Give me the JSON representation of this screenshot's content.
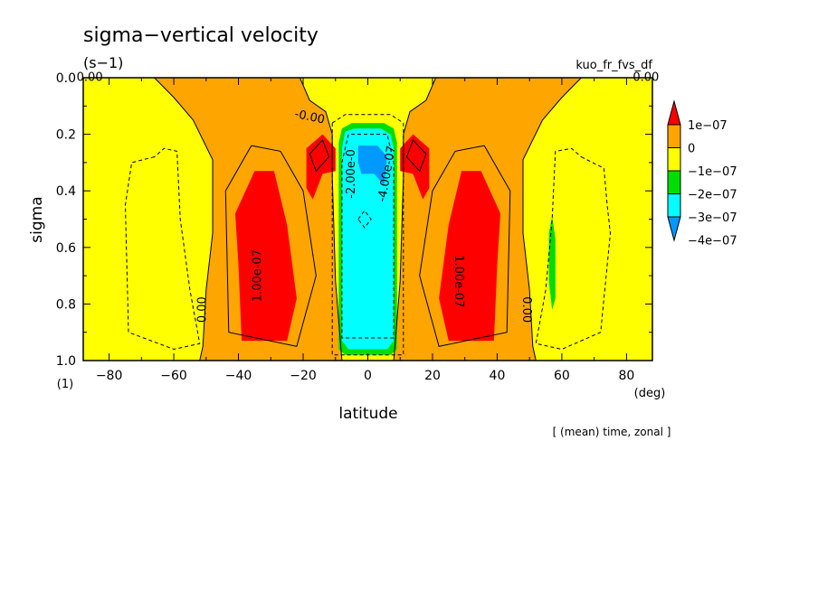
{
  "chart_data": {
    "type": "heatmap",
    "title": "sigma−vertical velocity",
    "units": "(s−1)",
    "run_label": "kuo_fr_fvs_df",
    "footnote": "[ (mean) time, zonal ]",
    "xlabel": "latitude",
    "xunit": "(deg)",
    "ylabel": "sigma",
    "yunit": "(1)",
    "xlim": [
      -88,
      88
    ],
    "ylim": [
      1.0,
      0.0
    ],
    "x_ticks": [
      -80,
      -60,
      -40,
      -20,
      0,
      20,
      40,
      60,
      80
    ],
    "y_ticks": [
      "0.0",
      "0.2",
      "0.4",
      "0.6",
      "0.8",
      "1.0"
    ],
    "grid": false,
    "legend": "right",
    "colorbar": [
      {
        "label": "1e−07",
        "color": "#ff0000"
      },
      {
        "label": "0",
        "color": "#ffa500"
      },
      {
        "label": "−1e−07",
        "color": "#ffff00"
      },
      {
        "label": "−2e−07",
        "color": "#00dd00"
      },
      {
        "label": "−3e−07",
        "color": "#00ffff"
      },
      {
        "label": "−4e−07",
        "color": "#0099ff"
      }
    ],
    "contour_labels": [
      {
        "text": "0.00",
        "lat": -86,
        "sigma": 0.0,
        "angle": 0
      },
      {
        "text": "0.00",
        "lat": 86,
        "sigma": 0.0,
        "angle": 0
      },
      {
        "text": "-0.00",
        "lat": -18,
        "sigma": 0.14,
        "angle": 12
      },
      {
        "text": "0.00",
        "lat": -51,
        "sigma": 0.82,
        "angle": -90
      },
      {
        "text": "0.00",
        "lat": 49,
        "sigma": 0.82,
        "angle": 90
      },
      {
        "text": "1.00e-07",
        "lat": -34,
        "sigma": 0.7,
        "angle": -90
      },
      {
        "text": "1.00e-07",
        "lat": 28,
        "sigma": 0.72,
        "angle": 90
      },
      {
        "text": "-2.00e-0",
        "lat": -5,
        "sigma": 0.34,
        "angle": -90
      },
      {
        "text": "-4.00e-07",
        "lat": 6,
        "sigma": 0.34,
        "angle": -80
      }
    ],
    "regions": [
      {
        "level": "0",
        "points": [
          [
            -66,
            0
          ],
          [
            -60,
            0.07
          ],
          [
            -54,
            0.15
          ],
          [
            -48,
            0.29
          ],
          [
            -48,
            0.55
          ],
          [
            -50,
            0.75
          ],
          [
            -51,
            0.95
          ],
          [
            -52,
            1
          ],
          [
            -8,
            1
          ],
          [
            -10,
            0.72
          ],
          [
            -11,
            0.35
          ],
          [
            -11,
            0.2
          ],
          [
            -13,
            0.12
          ],
          [
            -18,
            0.08
          ],
          [
            -21,
            0
          ]
        ]
      },
      {
        "level": "0",
        "points": [
          [
            21,
            0
          ],
          [
            18,
            0.08
          ],
          [
            13,
            0.12
          ],
          [
            11,
            0.2
          ],
          [
            11,
            0.35
          ],
          [
            10,
            0.72
          ],
          [
            8,
            1
          ],
          [
            52,
            1
          ],
          [
            51,
            0.95
          ],
          [
            50,
            0.75
          ],
          [
            48,
            0.55
          ],
          [
            48,
            0.29
          ],
          [
            54,
            0.15
          ],
          [
            60,
            0.07
          ],
          [
            66,
            0
          ]
        ]
      },
      {
        "level": "1e−07",
        "points": [
          [
            -35,
            0.33
          ],
          [
            -41,
            0.48
          ],
          [
            -40,
            0.66
          ],
          [
            -39,
            0.93
          ],
          [
            -25,
            0.93
          ],
          [
            -22,
            0.78
          ],
          [
            -25,
            0.52
          ],
          [
            -29,
            0.33
          ]
        ]
      },
      {
        "level": "1e−07",
        "points": [
          [
            -19,
            0.25
          ],
          [
            -19,
            0.39
          ],
          [
            -17,
            0.43
          ],
          [
            -14,
            0.34
          ],
          [
            -10,
            0.33
          ],
          [
            -10,
            0.25
          ],
          [
            -14,
            0.2
          ]
        ]
      },
      {
        "level": "1e−07",
        "points": [
          [
            29,
            0.33
          ],
          [
            25,
            0.52
          ],
          [
            22,
            0.78
          ],
          [
            25,
            0.93
          ],
          [
            39,
            0.93
          ],
          [
            40,
            0.66
          ],
          [
            41,
            0.48
          ],
          [
            35,
            0.33
          ]
        ]
      },
      {
        "level": "1e−07",
        "points": [
          [
            19,
            0.25
          ],
          [
            19,
            0.39
          ],
          [
            17,
            0.43
          ],
          [
            14,
            0.34
          ],
          [
            10,
            0.33
          ],
          [
            10,
            0.25
          ],
          [
            14,
            0.2
          ]
        ]
      },
      {
        "level": "−2e−07",
        "points": [
          [
            -9,
            0.23
          ],
          [
            -8,
            0.18
          ],
          [
            -5,
            0.16
          ],
          [
            5,
            0.16
          ],
          [
            8,
            0.18
          ],
          [
            9,
            0.23
          ],
          [
            9,
            0.96
          ],
          [
            7,
            0.98
          ],
          [
            -7,
            0.98
          ],
          [
            -9,
            0.96
          ]
        ]
      },
      {
        "level": "−3e−07",
        "points": [
          [
            -8,
            0.25
          ],
          [
            -7,
            0.19
          ],
          [
            -4,
            0.18
          ],
          [
            4,
            0.18
          ],
          [
            7,
            0.2
          ],
          [
            8,
            0.25
          ],
          [
            8,
            0.93
          ],
          [
            6,
            0.96
          ],
          [
            -6,
            0.96
          ],
          [
            -8,
            0.93
          ]
        ]
      },
      {
        "level": "−4e−07",
        "points": [
          [
            -3,
            0.24
          ],
          [
            3,
            0.24
          ],
          [
            6,
            0.28
          ],
          [
            5,
            0.38
          ],
          [
            2,
            0.34
          ],
          [
            -2,
            0.34
          ],
          [
            -3,
            0.3
          ]
        ]
      },
      {
        "level": "−2e−07",
        "points": [
          [
            57,
            0.49
          ],
          [
            58,
            0.57
          ],
          [
            58,
            0.78
          ],
          [
            57,
            0.82
          ],
          [
            56,
            0.72
          ],
          [
            56,
            0.55
          ]
        ]
      }
    ],
    "contours": [
      {
        "style": "solid",
        "points": [
          [
            -66,
            0
          ],
          [
            -60,
            0.07
          ],
          [
            -54,
            0.15
          ],
          [
            -48,
            0.29
          ],
          [
            -48,
            0.55
          ],
          [
            -50,
            0.75
          ],
          [
            -51,
            0.95
          ],
          [
            -52,
            1
          ]
        ]
      },
      {
        "style": "solid",
        "points": [
          [
            66,
            0
          ],
          [
            60,
            0.07
          ],
          [
            54,
            0.15
          ],
          [
            48,
            0.29
          ],
          [
            48,
            0.55
          ],
          [
            50,
            0.75
          ],
          [
            51,
            0.95
          ],
          [
            52,
            1
          ]
        ]
      },
      {
        "style": "solid",
        "points": [
          [
            -21,
            0
          ],
          [
            -18,
            0.08
          ],
          [
            -13,
            0.12
          ],
          [
            -11,
            0.2
          ],
          [
            -11,
            0.35
          ],
          [
            -10,
            0.72
          ],
          [
            -8,
            1
          ]
        ]
      },
      {
        "style": "solid",
        "points": [
          [
            21,
            0
          ],
          [
            18,
            0.08
          ],
          [
            13,
            0.12
          ],
          [
            11,
            0.2
          ],
          [
            11,
            0.35
          ],
          [
            10,
            0.72
          ],
          [
            8,
            1
          ]
        ]
      },
      {
        "style": "solid",
        "points": [
          [
            -36,
            0.24
          ],
          [
            -44,
            0.4
          ],
          [
            -43,
            0.9
          ],
          [
            -22,
            0.95
          ],
          [
            -16,
            0.7
          ],
          [
            -20,
            0.4
          ],
          [
            -27,
            0.26
          ],
          [
            -36,
            0.24
          ]
        ]
      },
      {
        "style": "solid",
        "points": [
          [
            36,
            0.24
          ],
          [
            44,
            0.4
          ],
          [
            43,
            0.9
          ],
          [
            22,
            0.95
          ],
          [
            16,
            0.7
          ],
          [
            20,
            0.4
          ],
          [
            27,
            0.26
          ],
          [
            36,
            0.24
          ]
        ]
      },
      {
        "style": "solid",
        "points": [
          [
            -18,
            0.27
          ],
          [
            -14,
            0.22
          ],
          [
            -12,
            0.28
          ],
          [
            -16,
            0.33
          ],
          [
            -18,
            0.27
          ]
        ]
      },
      {
        "style": "solid",
        "points": [
          [
            18,
            0.27
          ],
          [
            14,
            0.22
          ],
          [
            12,
            0.28
          ],
          [
            16,
            0.33
          ],
          [
            18,
            0.27
          ]
        ]
      },
      {
        "style": "dashed",
        "points": [
          [
            -66,
            0.28
          ],
          [
            -73,
            0.3
          ],
          [
            -75,
            0.45
          ],
          [
            -74,
            0.9
          ],
          [
            -60,
            0.96
          ],
          [
            -52,
            0.94
          ],
          [
            -55,
            0.75
          ],
          [
            -58,
            0.5
          ],
          [
            -59,
            0.26
          ],
          [
            -63,
            0.25
          ],
          [
            -66,
            0.28
          ]
        ]
      },
      {
        "style": "dashed",
        "points": [
          [
            66,
            0.28
          ],
          [
            73,
            0.32
          ],
          [
            74,
            0.45
          ],
          [
            75,
            0.55
          ],
          [
            72,
            0.9
          ],
          [
            60,
            0.96
          ],
          [
            52,
            0.94
          ],
          [
            55,
            0.75
          ],
          [
            57,
            0.5
          ],
          [
            58,
            0.26
          ],
          [
            63,
            0.25
          ],
          [
            66,
            0.28
          ]
        ]
      },
      {
        "style": "dashed",
        "points": [
          [
            -11,
            0.16
          ],
          [
            -7,
            0.13
          ],
          [
            7,
            0.13
          ],
          [
            11,
            0.16
          ],
          [
            11,
            0.98
          ],
          [
            -11,
            0.98
          ],
          [
            -11,
            0.16
          ]
        ]
      },
      {
        "style": "dashed",
        "points": [
          [
            -8,
            0.3
          ],
          [
            -6,
            0.2
          ],
          [
            6,
            0.2
          ],
          [
            8,
            0.3
          ],
          [
            8,
            0.92
          ],
          [
            -8,
            0.92
          ],
          [
            -8,
            0.3
          ]
        ]
      },
      {
        "style": "dashed",
        "points": [
          [
            -3,
            0.5
          ],
          [
            -1,
            0.47
          ],
          [
            1,
            0.5
          ],
          [
            -1,
            0.53
          ],
          [
            -3,
            0.5
          ]
        ]
      }
    ]
  }
}
